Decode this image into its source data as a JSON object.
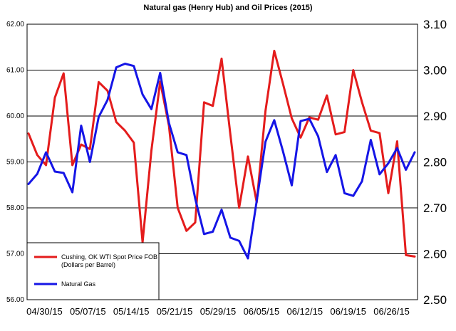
{
  "chart_data": {
    "type": "line",
    "title": "Natural gas (Henry Hub)  and Oil Prices (2015)",
    "x_tick_labels": [
      "04/30/15",
      "05/07/15",
      "05/14/15",
      "05/21/15",
      "05/29/15",
      "06/05/15",
      "06/12/15",
      "06/19/15",
      "06/26/15"
    ],
    "y_left": {
      "ylim": [
        56.0,
        62.0
      ],
      "ticks": [
        "56.00",
        "57.00",
        "58.00",
        "59.00",
        "60.00",
        "61.00",
        "62.00"
      ]
    },
    "y_right": {
      "ylim": [
        2.5,
        3.1
      ],
      "ticks": [
        "2.50",
        "2.60",
        "2.70",
        "2.80",
        "2.90",
        "3.00",
        "3.10"
      ]
    },
    "grid": true,
    "legend_placement": "bottom-left",
    "series": [
      {
        "name": "Cushing, OK WTI Spot Price FOB (Dollars per Barrel)",
        "legend_lines": [
          "Cushing, OK WTI Spot Price FOB",
          "(Dollars per Barrel)"
        ],
        "axis": "left",
        "color": "#e41c1c",
        "values": [
          59.62,
          59.15,
          58.93,
          60.4,
          60.93,
          58.93,
          59.38,
          59.28,
          60.74,
          60.55,
          59.87,
          59.68,
          59.42,
          57.25,
          59.25,
          60.75,
          59.79,
          58.0,
          57.5,
          57.68,
          60.3,
          60.22,
          61.25,
          59.6,
          58.0,
          59.12,
          58.12,
          60.11,
          61.42,
          60.7,
          59.95,
          59.53,
          59.97,
          59.92,
          60.45,
          59.6,
          59.65,
          61.0,
          60.3,
          59.68,
          59.63,
          58.32,
          59.45,
          56.97,
          56.94
        ]
      },
      {
        "name": "Natural Gas",
        "legend_lines": [
          "Natural Gas"
        ],
        "axis": "right",
        "color": "#1515e6",
        "values": [
          2.752,
          2.774,
          2.821,
          2.779,
          2.776,
          2.734,
          2.879,
          2.8,
          2.898,
          2.935,
          3.006,
          3.014,
          3.009,
          2.947,
          2.915,
          2.994,
          2.885,
          2.821,
          2.815,
          2.72,
          2.643,
          2.648,
          2.696,
          2.635,
          2.628,
          2.59,
          2.715,
          2.844,
          2.891,
          2.823,
          2.749,
          2.889,
          2.894,
          2.856,
          2.778,
          2.815,
          2.732,
          2.726,
          2.758,
          2.848,
          2.773,
          2.797,
          2.83,
          2.783,
          2.821
        ]
      }
    ]
  }
}
